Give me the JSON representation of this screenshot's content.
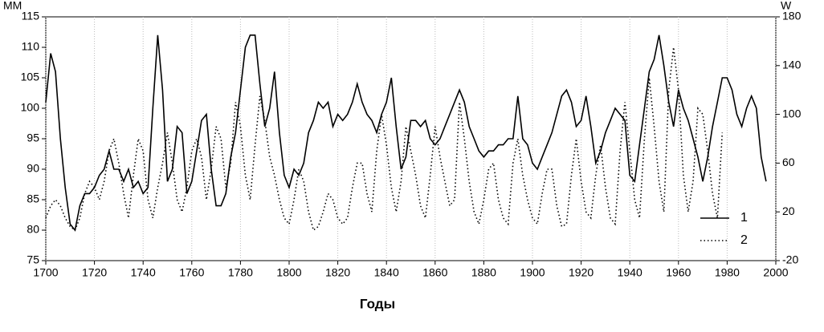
{
  "chart_data": {
    "type": "line",
    "y_label": "ММ",
    "y2_label": "W",
    "x_label": "Годы",
    "x": [
      1700,
      1702,
      1704,
      1706,
      1708,
      1710,
      1712,
      1714,
      1716,
      1718,
      1720,
      1722,
      1724,
      1726,
      1728,
      1730,
      1732,
      1734,
      1736,
      1738,
      1740,
      1742,
      1744,
      1746,
      1748,
      1750,
      1752,
      1754,
      1756,
      1758,
      1760,
      1762,
      1764,
      1766,
      1768,
      1770,
      1772,
      1774,
      1776,
      1778,
      1780,
      1782,
      1784,
      1786,
      1788,
      1790,
      1792,
      1794,
      1796,
      1798,
      1800,
      1802,
      1804,
      1806,
      1808,
      1810,
      1812,
      1814,
      1816,
      1818,
      1820,
      1822,
      1824,
      1826,
      1828,
      1830,
      1832,
      1834,
      1836,
      1838,
      1840,
      1842,
      1844,
      1846,
      1848,
      1850,
      1852,
      1854,
      1856,
      1858,
      1860,
      1862,
      1864,
      1866,
      1868,
      1870,
      1872,
      1874,
      1876,
      1878,
      1880,
      1882,
      1884,
      1886,
      1888,
      1890,
      1892,
      1894,
      1896,
      1898,
      1900,
      1902,
      1904,
      1906,
      1908,
      1910,
      1912,
      1914,
      1916,
      1918,
      1920,
      1922,
      1924,
      1926,
      1928,
      1930,
      1932,
      1934,
      1936,
      1938,
      1940,
      1942,
      1944,
      1946,
      1948,
      1950,
      1952,
      1954,
      1956,
      1958,
      1960,
      1962,
      1964,
      1966,
      1968,
      1970,
      1972,
      1974,
      1976,
      1978,
      1980,
      1982,
      1984,
      1986,
      1988,
      1990,
      1992,
      1994,
      1996
    ],
    "series": [
      {
        "name": "1",
        "color": "#000000",
        "dash": "none",
        "axis": "y",
        "values": [
          101,
          109,
          106,
          95,
          87,
          81,
          80,
          84,
          86,
          86,
          87,
          89,
          90,
          93,
          90,
          90,
          88,
          90,
          87,
          88,
          86,
          87,
          100,
          112,
          103,
          88,
          90,
          97,
          96,
          86,
          88,
          93,
          98,
          99,
          90,
          84,
          84,
          86,
          92,
          96,
          103,
          110,
          112,
          112,
          104,
          97,
          100,
          106,
          96,
          89,
          87,
          90,
          89,
          91,
          96,
          98,
          101,
          100,
          101,
          97,
          99,
          98,
          99,
          101,
          104,
          101,
          99,
          98,
          96,
          99,
          101,
          105,
          97,
          90,
          92,
          98,
          98,
          97,
          98,
          95,
          94,
          95,
          97,
          99,
          101,
          103,
          101,
          97,
          95,
          93,
          92,
          93,
          93,
          94,
          94,
          95,
          95,
          102,
          95,
          94,
          91,
          90,
          92,
          94,
          96,
          99,
          102,
          103,
          101,
          97,
          98,
          102,
          97,
          91,
          93,
          96,
          98,
          100,
          99,
          98,
          89,
          88,
          94,
          100,
          106,
          108,
          112,
          107,
          101,
          97,
          103,
          100,
          98,
          95,
          92,
          88,
          92,
          97,
          101,
          105,
          105,
          103,
          99,
          97,
          100,
          102,
          100,
          92,
          88
        ]
      },
      {
        "name": "2",
        "color": "#000000",
        "dash": "1.5,3",
        "axis": "y2",
        "values": [
          15,
          25,
          30,
          25,
          15,
          8,
          5,
          15,
          35,
          45,
          40,
          30,
          45,
          70,
          80,
          60,
          35,
          15,
          50,
          80,
          70,
          30,
          15,
          40,
          60,
          85,
          60,
          30,
          20,
          40,
          70,
          80,
          65,
          30,
          55,
          90,
          80,
          40,
          60,
          110,
          90,
          50,
          30,
          75,
          115,
          95,
          65,
          50,
          30,
          15,
          10,
          30,
          55,
          45,
          20,
          5,
          8,
          20,
          35,
          30,
          15,
          10,
          15,
          40,
          60,
          60,
          35,
          20,
          70,
          100,
          75,
          40,
          20,
          45,
          90,
          70,
          50,
          25,
          15,
          50,
          90,
          65,
          45,
          25,
          30,
          110,
          80,
          45,
          20,
          10,
          30,
          55,
          60,
          30,
          15,
          10,
          60,
          80,
          50,
          30,
          15,
          10,
          35,
          55,
          55,
          25,
          8,
          10,
          50,
          80,
          45,
          20,
          15,
          50,
          75,
          40,
          15,
          10,
          70,
          110,
          70,
          30,
          15,
          80,
          130,
          90,
          45,
          20,
          120,
          155,
          120,
          50,
          20,
          45,
          105,
          100,
          70,
          35,
          15,
          85,
          null,
          null,
          null,
          null,
          null,
          null,
          null,
          null,
          null
        ]
      }
    ],
    "xlim": [
      1700,
      2000
    ],
    "xticks": [
      1700,
      1720,
      1740,
      1760,
      1780,
      1800,
      1820,
      1840,
      1860,
      1880,
      1900,
      1920,
      1940,
      1960,
      1980,
      2000
    ],
    "ylim": [
      75,
      115
    ],
    "yticks": [
      75,
      80,
      85,
      90,
      95,
      100,
      105,
      110,
      115
    ],
    "y2lim": [
      -20,
      180
    ],
    "y2ticks": [
      -20,
      20,
      60,
      100,
      140,
      180
    ],
    "grid": "x",
    "legend": "lower-right"
  }
}
